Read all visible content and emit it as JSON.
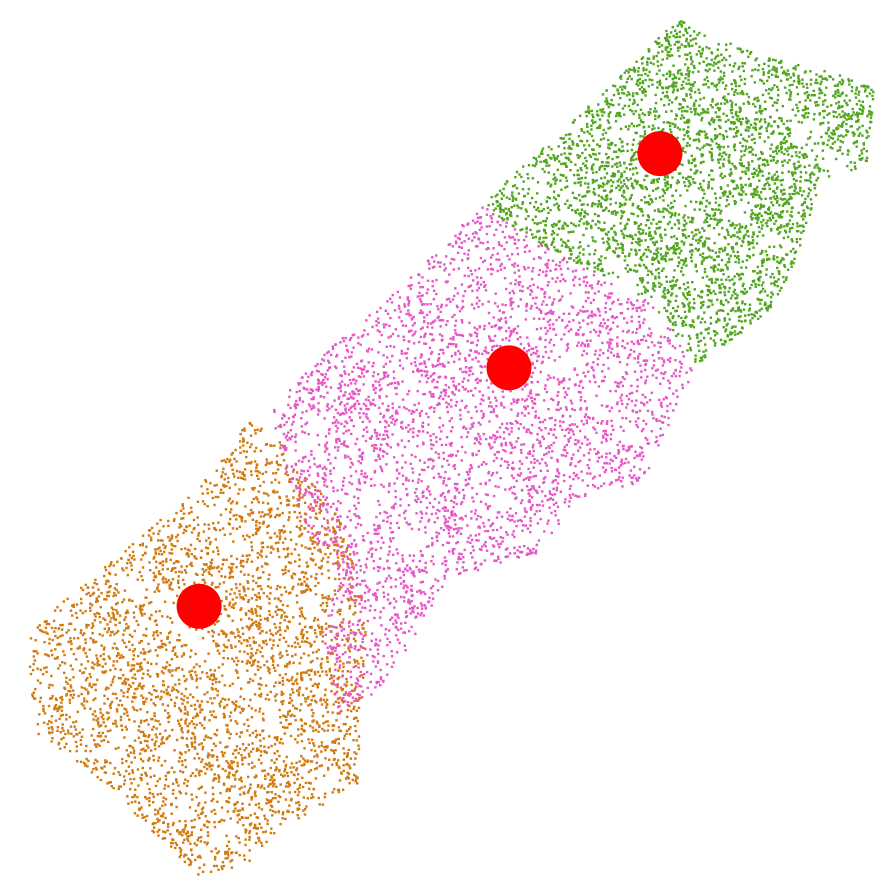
{
  "chart_data": {
    "type": "scatter",
    "title": "",
    "xlabel": "",
    "ylabel": "",
    "axes_visible": false,
    "grid": false,
    "legend": "none",
    "xlim": [
      0,
      100
    ],
    "ylim": [
      0,
      100
    ],
    "series": [
      {
        "cluster": 1,
        "color": "#d17a0f",
        "approx_point_count": 3500,
        "region_polygon": [
          [
            3,
            29
          ],
          [
            12,
            37
          ],
          [
            22,
            45
          ],
          [
            28,
            53
          ],
          [
            32,
            50
          ],
          [
            38,
            42
          ],
          [
            40,
            37
          ],
          [
            41,
            29
          ],
          [
            40,
            12
          ],
          [
            31,
            7
          ],
          [
            28,
            3
          ],
          [
            22,
            2
          ],
          [
            12,
            12
          ],
          [
            4,
            18
          ]
        ],
        "centroid": [
          22.3,
          32.1
        ]
      },
      {
        "cluster": 2,
        "color": "#e657c5",
        "approx_point_count": 3500,
        "region_polygon": [
          [
            30,
            54
          ],
          [
            38,
            62
          ],
          [
            44,
            67
          ],
          [
            54,
            77
          ],
          [
            60,
            73
          ],
          [
            73,
            66
          ],
          [
            78,
            59
          ],
          [
            72,
            46
          ],
          [
            65,
            44
          ],
          [
            60,
            38
          ],
          [
            50,
            35
          ],
          [
            43,
            23
          ],
          [
            38,
            20
          ],
          [
            36,
            30
          ],
          [
            38,
            36
          ],
          [
            34,
            41
          ]
        ],
        "centroid": [
          57.0,
          58.8
        ]
      },
      {
        "cluster": 3,
        "color": "#52a61f",
        "approx_point_count": 3500,
        "region_polygon": [
          [
            56,
            79
          ],
          [
            68,
            90
          ],
          [
            76,
            98
          ],
          [
            82,
            95
          ],
          [
            88,
            93
          ],
          [
            93,
            92
          ],
          [
            98,
            90
          ],
          [
            97,
            81
          ],
          [
            92,
            80
          ],
          [
            89,
            70
          ],
          [
            86,
            65
          ],
          [
            82,
            62
          ],
          [
            78,
            59
          ],
          [
            73,
            66
          ],
          [
            60,
            73
          ],
          [
            54,
            77
          ]
        ],
        "centroid": [
          73.9,
          82.8
        ]
      }
    ],
    "centroids": {
      "color": "#ff0000",
      "points": [
        {
          "x": 22.3,
          "y": 32.1
        },
        {
          "x": 57.0,
          "y": 58.8
        },
        {
          "x": 73.9,
          "y": 82.8
        }
      ]
    }
  }
}
